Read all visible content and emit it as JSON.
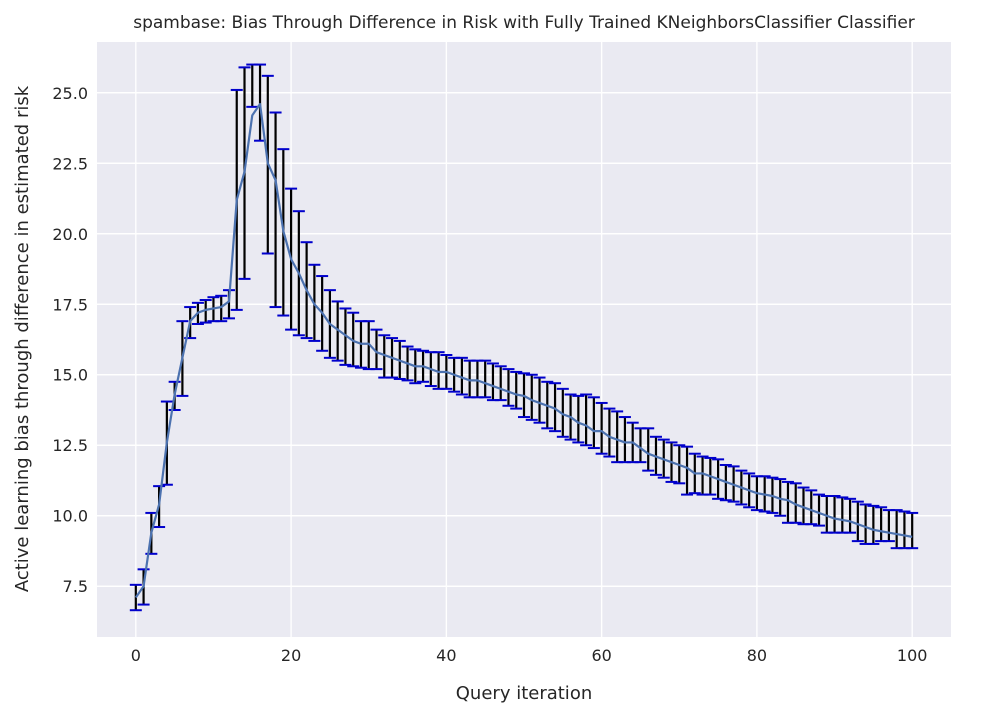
{
  "chart_data": {
    "type": "line",
    "title": "spambase: Bias Through Difference in Risk with Fully Trained KNeighborsClassifier Classifier",
    "xlabel": "Query iteration",
    "ylabel": "Active learning bias through difference in estimated risk",
    "xlim": [
      -5,
      105
    ],
    "ylim": [
      5.7,
      26.8
    ],
    "xticks": [
      0,
      20,
      40,
      60,
      80,
      100
    ],
    "yticks": [
      7.5,
      10.0,
      12.5,
      15.0,
      17.5,
      20.0,
      22.5,
      25.0
    ],
    "grid": true,
    "background_color": "#eaeaf2",
    "line_color": "#4c72b0",
    "errorbar_color": "#000000",
    "cap_color": "#0000cc",
    "series": [
      {
        "x": [
          0,
          1,
          2,
          3,
          4,
          5,
          6,
          7,
          8,
          9,
          10,
          11,
          12,
          13,
          14,
          15,
          16,
          17,
          18,
          19,
          20,
          21,
          22,
          23,
          24,
          25,
          26,
          27,
          28,
          29,
          30,
          31,
          32,
          33,
          34,
          35,
          36,
          37,
          38,
          39,
          40,
          41,
          42,
          43,
          44,
          45,
          46,
          47,
          48,
          49,
          50,
          51,
          52,
          53,
          54,
          55,
          56,
          57,
          58,
          59,
          60,
          61,
          62,
          63,
          64,
          65,
          66,
          67,
          68,
          69,
          70,
          71,
          72,
          73,
          74,
          75,
          76,
          77,
          78,
          79,
          80,
          81,
          82,
          83,
          84,
          85,
          86,
          87,
          88,
          89,
          90,
          91,
          92,
          93,
          94,
          95,
          96,
          97,
          98,
          99,
          100
        ],
        "y": [
          7.1,
          7.5,
          9.4,
          10.4,
          12.6,
          14.3,
          15.6,
          16.9,
          17.2,
          17.3,
          17.35,
          17.4,
          17.6,
          21.2,
          22.2,
          24.2,
          24.6,
          22.5,
          21.9,
          20.1,
          19.1,
          18.6,
          18.0,
          17.5,
          17.2,
          16.8,
          16.6,
          16.4,
          16.2,
          16.1,
          16.1,
          15.8,
          15.7,
          15.6,
          15.5,
          15.4,
          15.3,
          15.3,
          15.2,
          15.1,
          15.1,
          15.0,
          14.9,
          14.8,
          14.8,
          14.7,
          14.6,
          14.5,
          14.4,
          14.3,
          14.25,
          14.1,
          14.0,
          13.9,
          13.8,
          13.6,
          13.5,
          13.3,
          13.2,
          13.0,
          13.0,
          12.8,
          12.7,
          12.6,
          12.6,
          12.4,
          12.2,
          12.1,
          12.0,
          11.9,
          11.8,
          11.7,
          11.5,
          11.5,
          11.4,
          11.3,
          11.2,
          11.1,
          11.0,
          10.9,
          10.8,
          10.75,
          10.7,
          10.6,
          10.55,
          10.4,
          10.3,
          10.2,
          10.1,
          10.0,
          9.9,
          9.85,
          9.8,
          9.7,
          9.6,
          9.5,
          9.45,
          9.4,
          9.35,
          9.3,
          9.25
        ],
        "yerr_low": [
          6.65,
          6.85,
          8.65,
          9.6,
          11.1,
          13.75,
          14.25,
          16.3,
          16.8,
          16.85,
          16.9,
          16.9,
          17.0,
          17.3,
          18.4,
          24.5,
          23.3,
          19.3,
          17.4,
          17.1,
          16.6,
          16.4,
          16.3,
          16.2,
          15.85,
          15.6,
          15.5,
          15.35,
          15.3,
          15.25,
          15.2,
          15.2,
          14.9,
          14.9,
          14.85,
          14.8,
          14.7,
          14.75,
          14.6,
          14.5,
          14.5,
          14.4,
          14.3,
          14.2,
          14.2,
          14.2,
          14.1,
          14.1,
          13.9,
          13.8,
          13.5,
          13.4,
          13.3,
          13.1,
          13.0,
          12.8,
          12.7,
          12.6,
          12.5,
          12.4,
          12.2,
          12.1,
          11.9,
          11.9,
          11.9,
          11.9,
          11.6,
          11.45,
          11.35,
          11.2,
          11.15,
          10.75,
          10.8,
          10.75,
          10.75,
          10.6,
          10.55,
          10.5,
          10.4,
          10.3,
          10.2,
          10.15,
          10.1,
          10.0,
          9.75,
          9.75,
          9.7,
          9.7,
          9.65,
          9.4,
          9.4,
          9.4,
          9.4,
          9.1,
          9.0,
          9.0,
          9.1,
          9.1,
          8.85,
          8.85,
          8.85
        ],
        "yerr_high": [
          7.55,
          8.1,
          10.1,
          11.05,
          14.05,
          14.75,
          16.9,
          17.4,
          17.55,
          17.65,
          17.75,
          17.8,
          18.0,
          25.1,
          25.9,
          26.0,
          26.0,
          25.6,
          24.3,
          23.0,
          21.6,
          20.8,
          19.7,
          18.9,
          18.5,
          18.0,
          17.6,
          17.35,
          17.2,
          16.9,
          16.9,
          16.6,
          16.4,
          16.3,
          16.2,
          16.0,
          15.9,
          15.85,
          15.8,
          15.8,
          15.7,
          15.6,
          15.6,
          15.5,
          15.5,
          15.5,
          15.4,
          15.3,
          15.2,
          15.1,
          15.05,
          15.0,
          14.9,
          14.75,
          14.7,
          14.5,
          14.3,
          14.25,
          14.3,
          14.2,
          14.0,
          13.8,
          13.7,
          13.5,
          13.3,
          13.1,
          13.1,
          12.8,
          12.7,
          12.6,
          12.5,
          12.45,
          12.2,
          12.1,
          12.05,
          12.0,
          11.8,
          11.75,
          11.6,
          11.5,
          11.4,
          11.4,
          11.35,
          11.3,
          11.2,
          11.15,
          11.0,
          10.9,
          10.75,
          10.7,
          10.7,
          10.65,
          10.6,
          10.5,
          10.4,
          10.35,
          10.3,
          10.2,
          10.2,
          10.15,
          10.1
        ]
      }
    ]
  }
}
